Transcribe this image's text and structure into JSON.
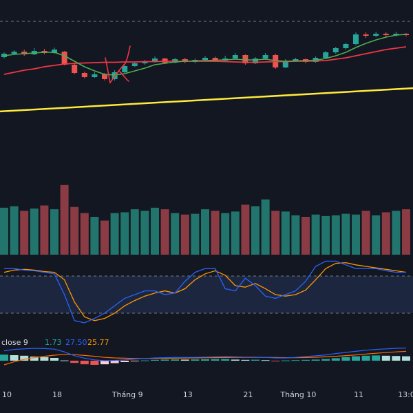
{
  "colors": {
    "background": "#131722",
    "up": "#26a69a",
    "down": "#ef5350",
    "vol_up": "#22756c",
    "vol_down": "#8a3b44",
    "ma_fast": "#4caf50",
    "ma_slow": "#f23645",
    "trendline": "#ffeb3b",
    "drawing": "#f23645",
    "stoch_k": "#2962ff",
    "stoch_d": "#ff9800",
    "macd_line": "#2962ff",
    "signal_line": "#ff6d00",
    "band_fill": "#1f2a44",
    "dashed": "#787b86",
    "text": "#d1d4dc"
  },
  "chart_data": {
    "type": "candlestick",
    "x_ticks": [
      {
        "label": "10",
        "index": 0
      },
      {
        "label": "18",
        "index": 5
      },
      {
        "label": "Tháng 9",
        "index": 12
      },
      {
        "label": "13",
        "index": 18
      },
      {
        "label": "21",
        "index": 24
      },
      {
        "label": "Tháng 10",
        "index": 29
      },
      {
        "label": "11",
        "index": 35
      },
      {
        "label": "13:00",
        "index": 40
      }
    ],
    "candles": [
      [
        97.0,
        102.0,
        104.0,
        95.0
      ],
      [
        102.0,
        105.0,
        107.0,
        100.0
      ],
      [
        105.0,
        101.0,
        108.0,
        99.0
      ],
      [
        101.0,
        106.0,
        110.0,
        100.0
      ],
      [
        106.0,
        103.0,
        109.0,
        101.0
      ],
      [
        103.0,
        108.0,
        111.0,
        102.0
      ],
      [
        105.0,
        86.0,
        106.0,
        85.0
      ],
      [
        86.0,
        74.0,
        89.0,
        72.0
      ],
      [
        74.0,
        68.0,
        76.0,
        66.0
      ],
      [
        68.0,
        72.0,
        75.0,
        67.0
      ],
      [
        72.0,
        65.0,
        74.0,
        63.0
      ],
      [
        65.0,
        75.0,
        78.0,
        63.0
      ],
      [
        75.0,
        84.0,
        86.0,
        74.0
      ],
      [
        84.0,
        88.0,
        90.0,
        83.0
      ],
      [
        88.0,
        91.0,
        93.0,
        86.0
      ],
      [
        91.0,
        95.0,
        98.0,
        89.0
      ],
      [
        95.0,
        89.0,
        96.0,
        87.0
      ],
      [
        89.0,
        94.0,
        96.0,
        88.0
      ],
      [
        94.0,
        90.0,
        96.0,
        88.0
      ],
      [
        90.0,
        93.0,
        95.0,
        88.0
      ],
      [
        93.0,
        96.0,
        99.0,
        91.0
      ],
      [
        96.0,
        92.0,
        98.0,
        90.0
      ],
      [
        92.0,
        95.0,
        99.0,
        91.0
      ],
      [
        95.0,
        100.0,
        103.0,
        94.0
      ],
      [
        100.0,
        88.0,
        101.0,
        86.0
      ],
      [
        88.0,
        95.0,
        97.0,
        87.0
      ],
      [
        95.0,
        100.0,
        103.0,
        93.0
      ],
      [
        100.0,
        82.0,
        102.0,
        80.0
      ],
      [
        82.0,
        92.0,
        94.0,
        81.0
      ],
      [
        92.0,
        94.0,
        96.0,
        90.0
      ],
      [
        94.0,
        90.0,
        95.0,
        88.0
      ],
      [
        90.0,
        96.0,
        98.0,
        89.0
      ],
      [
        96.0,
        104.0,
        106.0,
        94.0
      ],
      [
        104.0,
        110.0,
        112.0,
        102.0
      ],
      [
        110.0,
        116.0,
        118.0,
        108.0
      ],
      [
        116.0,
        130.0,
        133.0,
        114.0
      ],
      [
        130.0,
        128.0,
        133.0,
        125.0
      ],
      [
        128.0,
        131.0,
        134.0,
        126.0
      ],
      [
        131.0,
        129.0,
        133.0,
        126.0
      ],
      [
        129.0,
        131.0,
        134.0,
        127.0
      ],
      [
        131.0,
        129.0,
        132.0,
        127.0
      ]
    ],
    "ma_fast": [
      99.0,
      101.0,
      102.0,
      103.0,
      104.0,
      104.0,
      99.0,
      91.0,
      83.0,
      77.0,
      72.0,
      71.0,
      73.0,
      77.0,
      81.0,
      86.0,
      88.0,
      90.0,
      91.0,
      91.5,
      92.0,
      92.5,
      93.0,
      94.0,
      93.0,
      93.0,
      94.0,
      92.0,
      91.0,
      91.5,
      92.0,
      92.5,
      95.0,
      99.0,
      104.0,
      111.0,
      117.0,
      122.0,
      126.0,
      129.0,
      130.0
    ],
    "ma_slow": [
      72.0,
      75.0,
      78.0,
      80.0,
      83.0,
      85.0,
      87.0,
      88.0,
      88.5,
      89.0,
      89.5,
      89.5,
      90.0,
      90.0,
      90.5,
      90.5,
      91.0,
      91.0,
      91.0,
      91.0,
      91.0,
      91.0,
      90.5,
      90.0,
      89.5,
      89.5,
      90.0,
      90.5,
      90.5,
      91.0,
      91.0,
      91.5,
      92.0,
      94.0,
      96.0,
      99.0,
      102.0,
      105.0,
      108.0,
      110.0,
      112.0
    ],
    "trendline": {
      "from": [
        -0.5,
        18.0
      ],
      "to": [
        42.0,
        53.0
      ]
    },
    "volume": [
      62,
      64,
      58,
      61,
      65,
      60,
      92,
      63,
      55,
      50,
      45,
      55,
      56,
      60,
      58,
      62,
      60,
      55,
      53,
      54,
      60,
      58,
      55,
      57,
      66,
      64,
      73,
      58,
      57,
      52,
      50,
      53,
      51,
      52,
      54,
      53,
      58,
      52,
      56,
      58,
      60
    ],
    "stoch_k": [
      85,
      85,
      83,
      82,
      80,
      78,
      50,
      15,
      12,
      18,
      25,
      35,
      45,
      50,
      55,
      55,
      50,
      52,
      68,
      80,
      85,
      85,
      58,
      55,
      72,
      62,
      48,
      45,
      50,
      55,
      68,
      88,
      95,
      95,
      90,
      85,
      85,
      85,
      82,
      80,
      80
    ],
    "stoch_d": [
      80,
      83,
      84,
      83,
      81,
      80,
      70,
      40,
      20,
      15,
      18,
      25,
      35,
      42,
      48,
      52,
      55,
      52,
      58,
      70,
      78,
      82,
      76,
      62,
      60,
      65,
      58,
      50,
      48,
      50,
      56,
      70,
      85,
      92,
      93,
      90,
      88,
      86,
      84,
      82,
      80
    ],
    "stoch_range": [
      0,
      100
    ],
    "stoch_bands": [
      80,
      20
    ],
    "macd_hist": [
      2.2,
      2.0,
      1.8,
      1.5,
      1.3,
      1.0,
      0.1,
      -0.8,
      -1.3,
      -1.5,
      -1.3,
      -0.9,
      -0.5,
      -0.2,
      0.1,
      0.3,
      0.4,
      0.45,
      0.4,
      0.45,
      0.5,
      0.55,
      0.6,
      0.4,
      0.3,
      0.35,
      0.2,
      -0.1,
      0.1,
      0.2,
      0.3,
      0.4,
      0.6,
      0.9,
      1.3,
      1.6,
      1.8,
      1.9,
      1.8,
      1.7,
      1.6
    ],
    "macd_line": [
      3.6,
      4.1,
      4.3,
      4.5,
      4.4,
      4.2,
      3.2,
      1.8,
      0.9,
      0.3,
      0.0,
      0.1,
      0.3,
      0.6,
      0.8,
      1.0,
      1.1,
      1.2,
      1.2,
      1.2,
      1.3,
      1.4,
      1.5,
      1.4,
      1.3,
      1.3,
      1.2,
      1.0,
      1.0,
      1.2,
      1.5,
      1.8,
      2.1,
      2.6,
      3.0,
      3.4,
      3.8,
      4.1,
      4.3,
      4.5,
      4.6
    ],
    "signal_line": [
      -1.5,
      -0.4,
      0.5,
      1.1,
      1.6,
      2.0,
      2.3,
      2.2,
      1.9,
      1.6,
      1.2,
      1.0,
      0.9,
      0.8,
      0.8,
      0.8,
      0.85,
      0.9,
      0.95,
      1.0,
      1.05,
      1.1,
      1.15,
      1.2,
      1.2,
      1.2,
      1.2,
      1.15,
      1.1,
      1.1,
      1.15,
      1.25,
      1.4,
      1.6,
      1.85,
      2.1,
      2.4,
      2.7,
      2.95,
      3.2,
      3.4
    ],
    "macd_legend": {
      "label": "close 9",
      "hist": "1.73",
      "macd": "27.50",
      "signal": "25.77"
    }
  }
}
